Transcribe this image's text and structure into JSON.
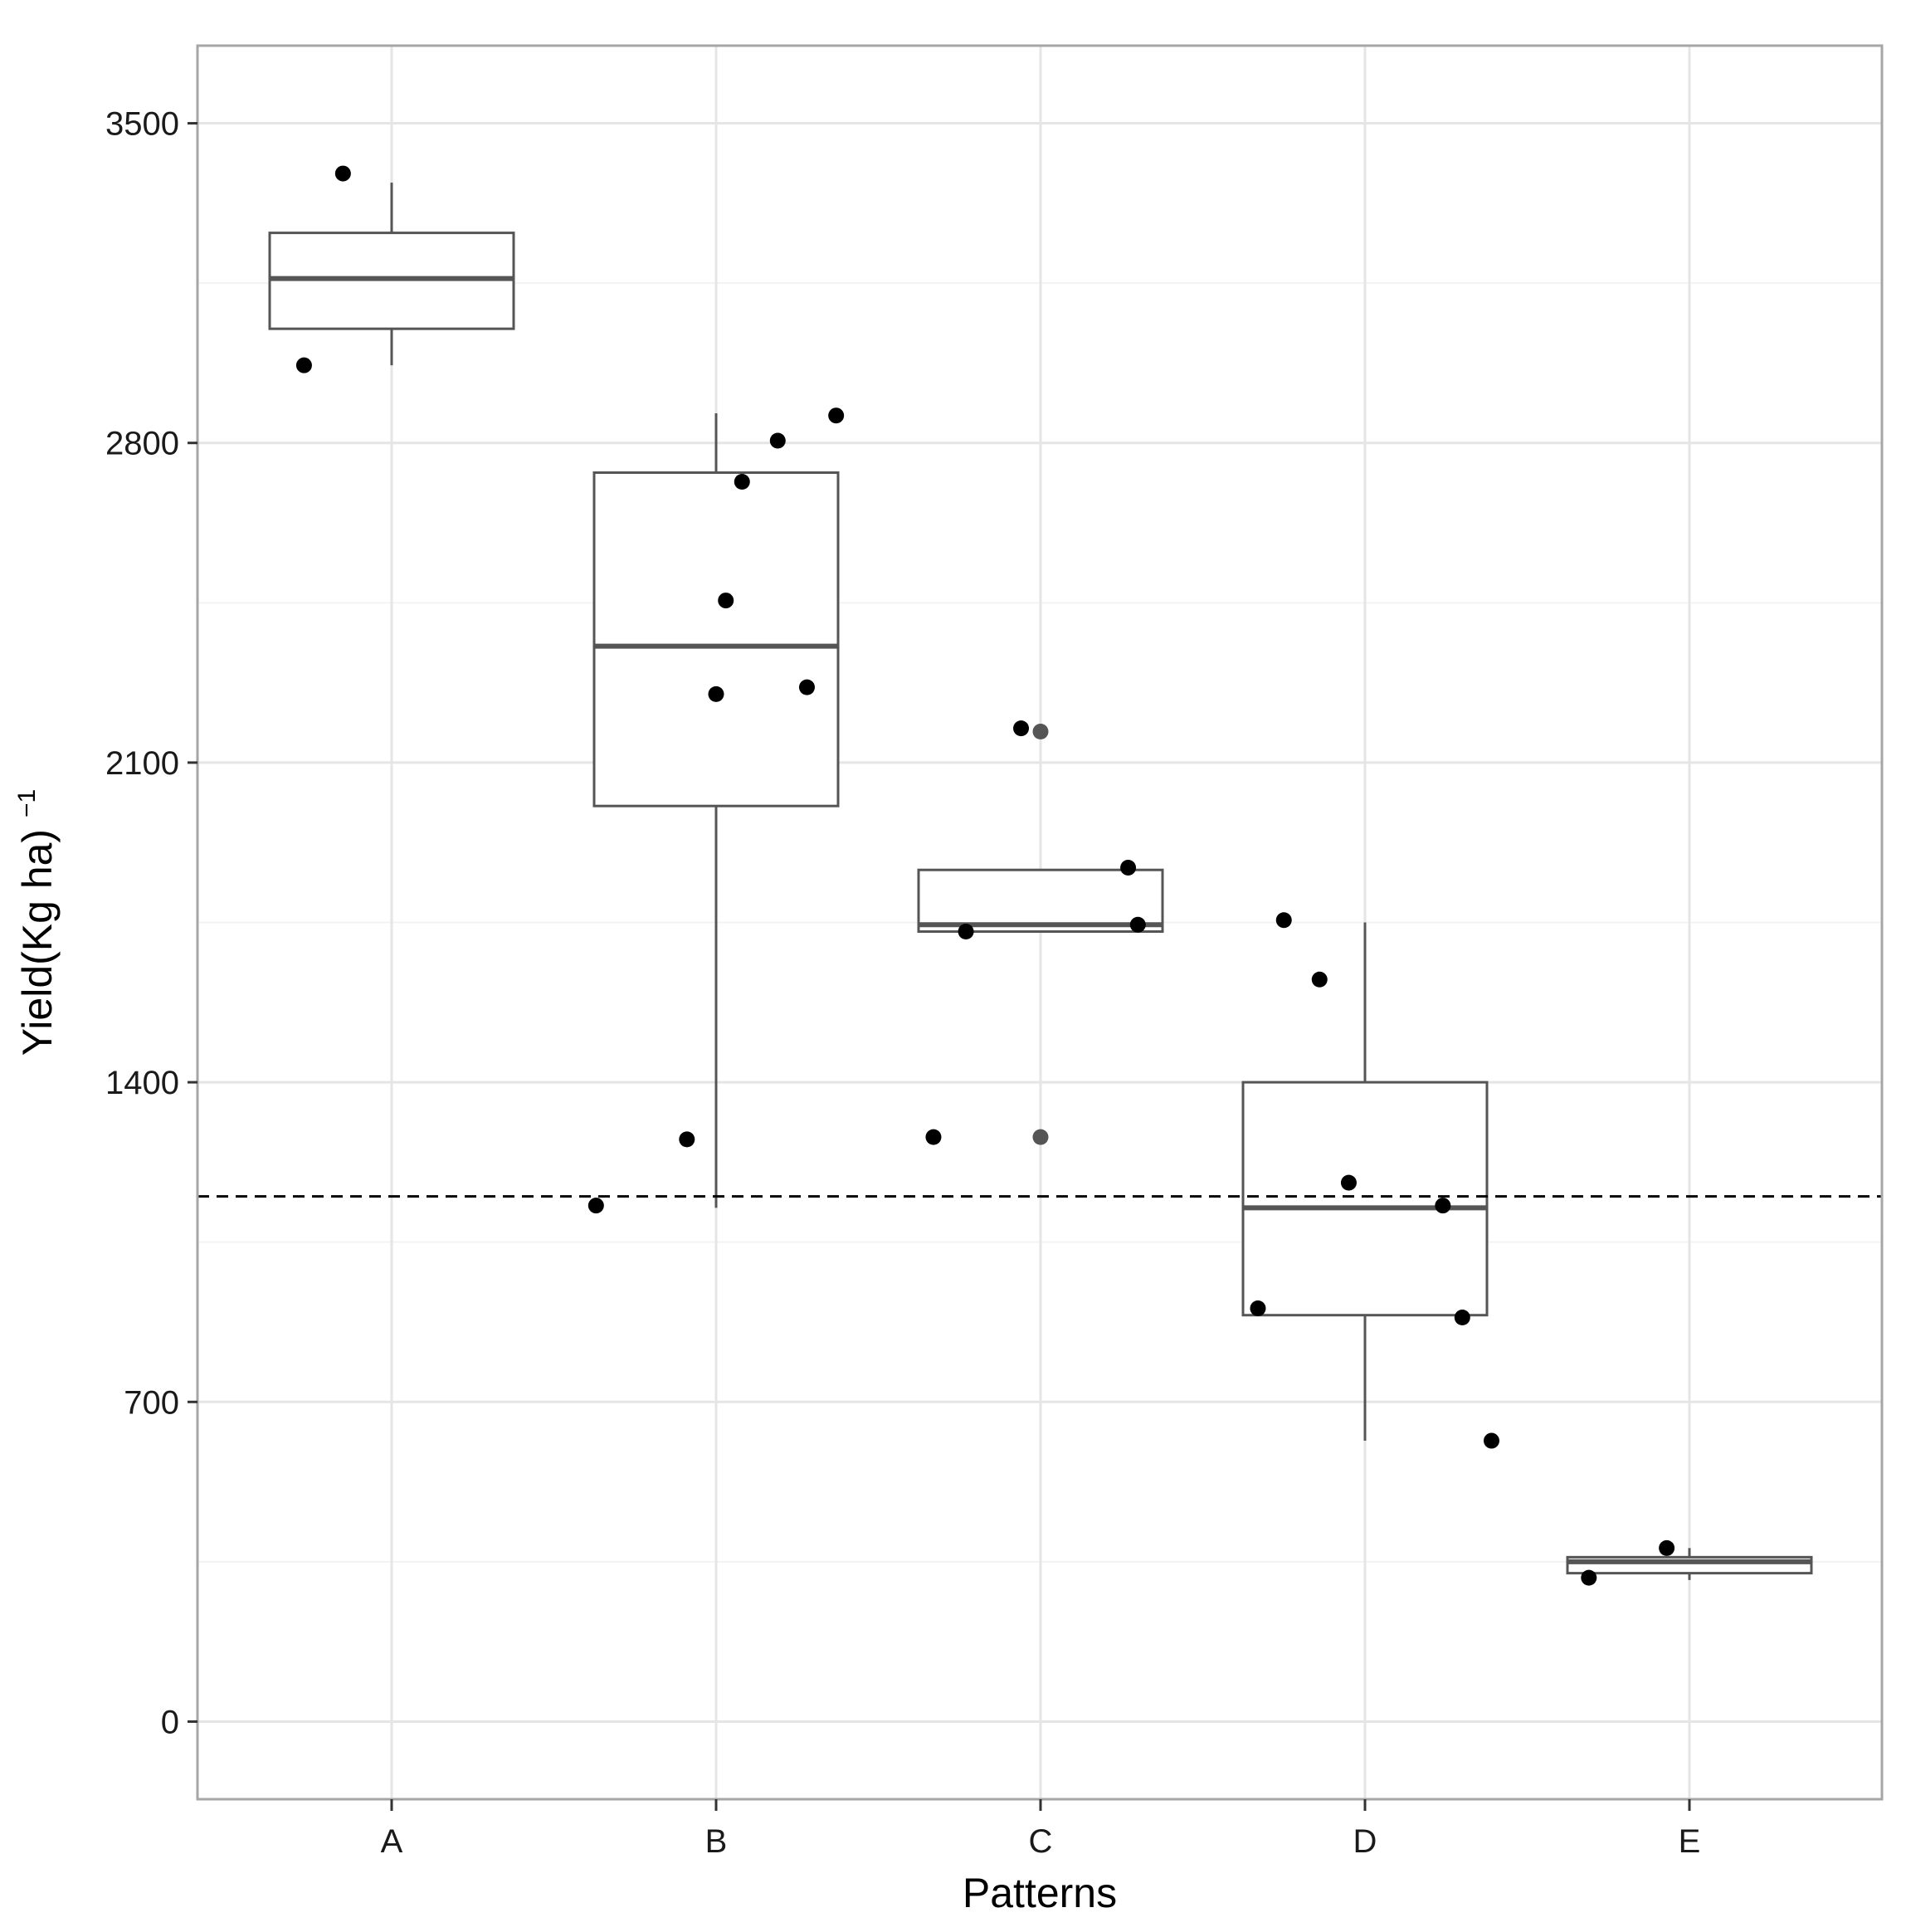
{
  "chart_data": {
    "type": "boxplot",
    "title": "",
    "xlabel": "Patterns",
    "ylabel": "Yield(Kg ha)",
    "ylabel_superscript": "−1",
    "ylim": [
      -170,
      3670
    ],
    "yticks": [
      0,
      700,
      1400,
      2100,
      2800,
      3500
    ],
    "ytick_labels": [
      "0",
      "700",
      "1400",
      "2100",
      "2800",
      "3500"
    ],
    "minor_yticks": [
      350,
      1050,
      1750,
      2450,
      3150
    ],
    "categories": [
      "A",
      "B",
      "C",
      "D",
      "E"
    ],
    "reference_line": {
      "y": 1150,
      "style": "dashed"
    },
    "boxes": [
      {
        "category": "A",
        "whisker_low": 2970,
        "q1": 3050,
        "median": 3160,
        "q3": 3260,
        "whisker_high": 3370
      },
      {
        "category": "B",
        "whisker_low": 1125,
        "q1": 2005,
        "median": 2355,
        "q3": 2735,
        "whisker_high": 2865
      },
      {
        "category": "C",
        "whisker_low": 1730,
        "q1": 1730,
        "median": 1745,
        "q3": 1865,
        "whisker_high": 1865
      },
      {
        "category": "D",
        "whisker_low": 615,
        "q1": 890,
        "median": 1125,
        "q3": 1400,
        "whisker_high": 1750
      },
      {
        "category": "E",
        "whisker_low": 310,
        "q1": 325,
        "median": 350,
        "q3": 360,
        "whisker_high": 380
      }
    ],
    "points": [
      {
        "category": "A",
        "jitter": -0.27,
        "y": 2970
      },
      {
        "category": "A",
        "jitter": -0.15,
        "y": 3390
      },
      {
        "category": "B",
        "jitter": -0.37,
        "y": 1130
      },
      {
        "category": "B",
        "jitter": -0.09,
        "y": 1275
      },
      {
        "category": "B",
        "jitter": 0.0,
        "y": 2250
      },
      {
        "category": "B",
        "jitter": 0.03,
        "y": 2455
      },
      {
        "category": "B",
        "jitter": 0.08,
        "y": 2715
      },
      {
        "category": "B",
        "jitter": 0.19,
        "y": 2805
      },
      {
        "category": "B",
        "jitter": 0.28,
        "y": 2265
      },
      {
        "category": "B",
        "jitter": 0.37,
        "y": 2860
      },
      {
        "category": "C",
        "jitter": -0.33,
        "y": 1280
      },
      {
        "category": "C",
        "jitter": -0.23,
        "y": 1730
      },
      {
        "category": "C",
        "jitter": -0.06,
        "y": 2175
      },
      {
        "category": "C",
        "jitter": 0.0,
        "y": 2168,
        "shade": "grey"
      },
      {
        "category": "C",
        "jitter": 0.0,
        "y": 1280,
        "shade": "grey"
      },
      {
        "category": "C",
        "jitter": 0.27,
        "y": 1870
      },
      {
        "category": "C",
        "jitter": 0.3,
        "y": 1745
      },
      {
        "category": "D",
        "jitter": -0.33,
        "y": 905
      },
      {
        "category": "D",
        "jitter": -0.25,
        "y": 1755
      },
      {
        "category": "D",
        "jitter": -0.14,
        "y": 1625
      },
      {
        "category": "D",
        "jitter": -0.05,
        "y": 1180
      },
      {
        "category": "D",
        "jitter": 0.24,
        "y": 1130
      },
      {
        "category": "D",
        "jitter": 0.3,
        "y": 885
      },
      {
        "category": "D",
        "jitter": 0.39,
        "y": 615
      },
      {
        "category": "E",
        "jitter": -0.31,
        "y": 315
      },
      {
        "category": "E",
        "jitter": -0.07,
        "y": 380
      }
    ],
    "grid": true,
    "legend": "none"
  },
  "colors": {
    "background": "#ffffff",
    "panel_border": "#a6a6a6",
    "grid_major": "#e5e5e5",
    "grid_minor": "#f3f3f3",
    "box_stroke": "#555555",
    "point": "#000000",
    "point_grey": "#555555",
    "reference_line": "#000000"
  }
}
